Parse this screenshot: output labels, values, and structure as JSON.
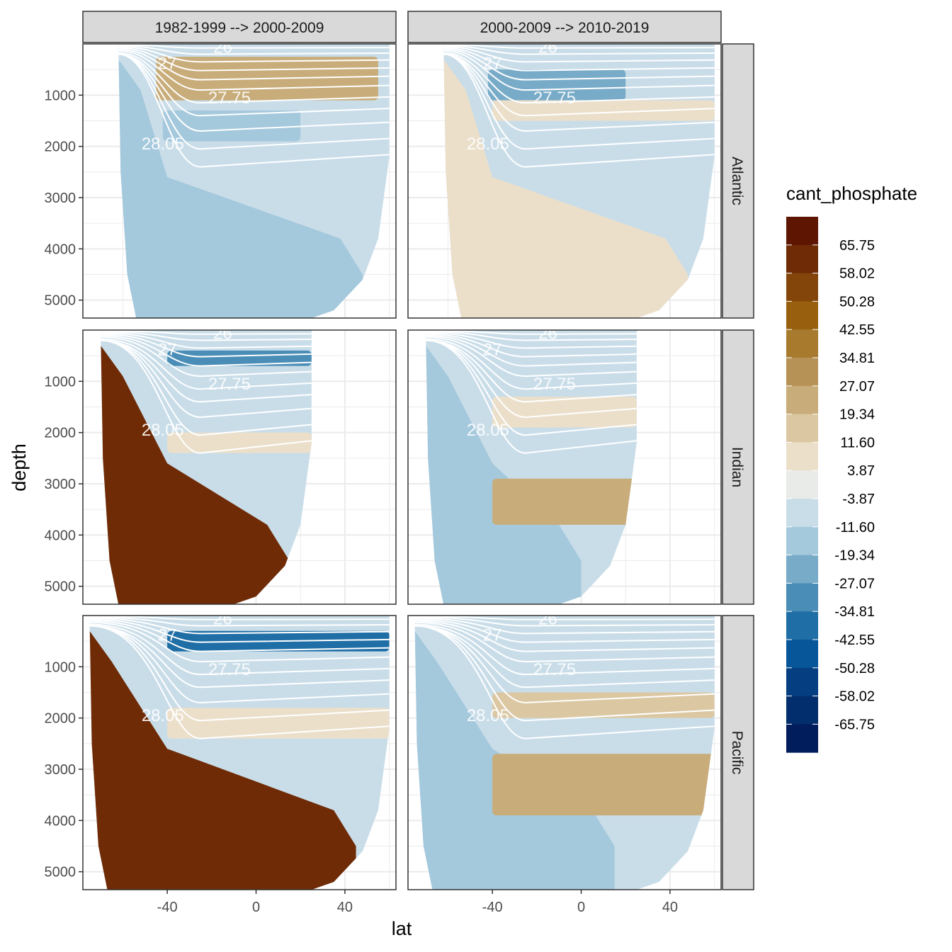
{
  "chart_data": {
    "type": "heatmap",
    "title": "",
    "xlabel": "lat",
    "ylabel": "depth",
    "xlim": [
      -78,
      63
    ],
    "ylim": [
      5350,
      0
    ],
    "x_ticks": [
      -40,
      0,
      40
    ],
    "y_ticks": [
      1000,
      2000,
      3000,
      4000,
      5000
    ],
    "grid": true,
    "legend_position": "right",
    "columns": [
      "1982-1999 --> 2000-2009",
      "2000-2009 --> 2010-2019"
    ],
    "rows": [
      "Atlantic",
      "Indian",
      "Pacific"
    ],
    "legend": {
      "title": "cant_phosphate",
      "labels": [
        "65.75",
        "58.02",
        "50.28",
        "42.55",
        "34.81",
        "27.07",
        "19.34",
        "11.60",
        "3.87",
        "-3.87",
        "-11.60",
        "-19.34",
        "-27.07",
        "-34.81",
        "-42.55",
        "-50.28",
        "-58.02",
        "-65.75"
      ],
      "colors": [
        "#5e1502",
        "#6f2b06",
        "#84450a",
        "#98600e",
        "#a87a2e",
        "#b79256",
        "#c8ac79",
        "#dbc7a2",
        "#ebdfca",
        "#e9ebe8",
        "#c9dde9",
        "#a4c8dc",
        "#78abc8",
        "#4a8db6",
        "#1f6ea6",
        "#07569a",
        "#053f82",
        "#032e6d",
        "#021d5c"
      ]
    },
    "density_labels": [
      "26",
      "27",
      "27.75",
      "28.05"
    ],
    "panels": [
      {
        "col": 0,
        "row": 0,
        "shelf_lat": -62,
        "north_edge": 60,
        "main": "-3.87",
        "deep": "-11.60",
        "deep_north_limit": 38,
        "thermo": [
          {
            "lat": [
              -45,
              55
            ],
            "depth": [
              250,
              1100
            ],
            "value": "27.07"
          },
          {
            "lat": [
              -42,
              20
            ],
            "depth": [
              1300,
              1900
            ],
            "value": "-11.60"
          }
        ]
      },
      {
        "col": 1,
        "row": 0,
        "shelf_lat": -62,
        "north_edge": 60,
        "main": "-3.87",
        "deep": "11.60",
        "deep_north_limit": 38,
        "thermo": [
          {
            "lat": [
              -42,
              20
            ],
            "depth": [
              500,
              1100
            ],
            "value": "-19.34"
          },
          {
            "lat": [
              -40,
              60
            ],
            "depth": [
              1100,
              1500
            ],
            "value": "11.60"
          }
        ]
      },
      {
        "col": 0,
        "row": 1,
        "shelf_lat": -70,
        "north_edge": 25,
        "main": "-3.87",
        "deep": "65.75",
        "deep_north_limit": 5,
        "thermo": [
          {
            "lat": [
              -40,
              25
            ],
            "depth": [
              400,
              700
            ],
            "value": "-27.07"
          },
          {
            "lat": [
              -40,
              25
            ],
            "depth": [
              2000,
              2400
            ],
            "value": "11.60"
          }
        ]
      },
      {
        "col": 1,
        "row": 1,
        "shelf_lat": -70,
        "north_edge": 25,
        "main": "-3.87",
        "deep": "-11.60",
        "deep_north_limit": -10,
        "thermo": [
          {
            "lat": [
              -40,
              25
            ],
            "depth": [
              2900,
              3800
            ],
            "value": "27.07"
          },
          {
            "lat": [
              -40,
              25
            ],
            "depth": [
              1300,
              1900
            ],
            "value": "11.60"
          }
        ]
      },
      {
        "col": 0,
        "row": 2,
        "shelf_lat": -75,
        "north_edge": 60,
        "main": "-3.87",
        "deep": "65.75",
        "deep_north_limit": 35,
        "thermo": [
          {
            "lat": [
              -40,
              60
            ],
            "depth": [
              300,
              700
            ],
            "value": "-34.81"
          },
          {
            "lat": [
              -40,
              60
            ],
            "depth": [
              1800,
              2400
            ],
            "value": "11.60"
          }
        ]
      },
      {
        "col": 1,
        "row": 2,
        "shelf_lat": -75,
        "north_edge": 60,
        "main": "-3.87",
        "deep": "-11.60",
        "deep_north_limit": 5,
        "thermo": [
          {
            "lat": [
              -40,
              60
            ],
            "depth": [
              2700,
              3900
            ],
            "value": "27.07"
          },
          {
            "lat": [
              -40,
              60
            ],
            "depth": [
              1500,
              2000
            ],
            "value": "19.34"
          }
        ]
      }
    ]
  }
}
